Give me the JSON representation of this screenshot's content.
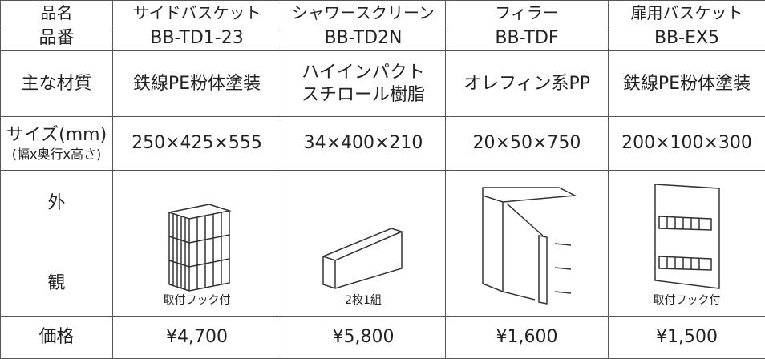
{
  "table": {
    "header": [
      "品名",
      "サイドバスケット",
      "シャワースクリーン",
      "フィラー",
      "扉用バスケット"
    ],
    "part_number": [
      "品番",
      "BB-TD1-23",
      "BB-TD2N",
      "BB-TDF",
      "BB-EX5"
    ],
    "material": {
      "label": "主な材質",
      "cells": [
        [
          "鉄線PE粉体塗装"
        ],
        [
          "ハイインパクト",
          "スチロール樹脂"
        ],
        [
          "オレフィン系PP"
        ],
        [
          "鉄線PE粉体塗装"
        ]
      ]
    },
    "size": {
      "label": [
        "サイズ(mm)",
        "(幅x奥行x高さ)"
      ],
      "cells": [
        "250×425×555",
        "34×400×210",
        "20×50×750",
        "200×100×300"
      ]
    },
    "appearance": {
      "label": [
        "外",
        "観"
      ],
      "captions": {
        "side": "取付フック付",
        "shower": "2枚1組",
        "door": "取付フック付"
      }
    },
    "price": [
      "価格",
      "¥4,700",
      "¥5,800",
      "¥1,600",
      "¥1,500"
    ]
  }
}
